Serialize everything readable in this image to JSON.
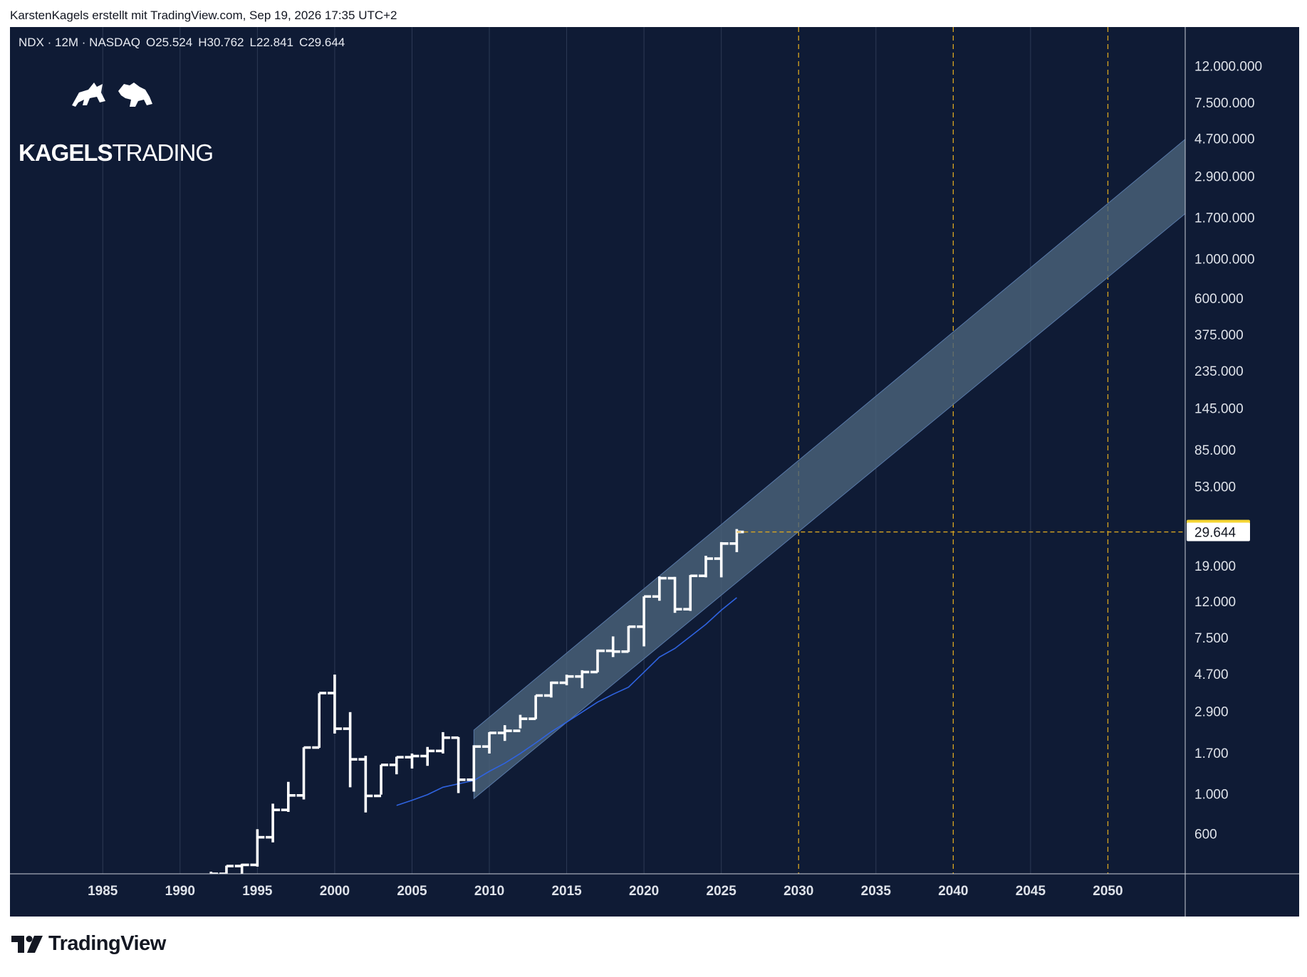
{
  "caption": "KarstenKagels erstellt mit TradingView.com, Sep 19, 2026 17:35 UTC+2",
  "legend": {
    "symbol": "NDX · 12M · NASDAQ",
    "open": "O25.524",
    "high": "H30.762",
    "low": "L22.841",
    "close": "C29.644"
  },
  "brand": {
    "bold": "KAGELS",
    "thin": "TRADING"
  },
  "footer": {
    "name": "TradingView"
  },
  "colors": {
    "background": "#0f1b35",
    "candle": "#ffffff",
    "channel_fill": "#4a637a",
    "ma_line": "#2f63e0",
    "future_gridline": "#d9a520",
    "price_tag_high": "#f5d533",
    "price_tag_close": "#ffffff"
  },
  "chart_data": {
    "type": "ohlc",
    "interval": "12M",
    "y_scale": "log",
    "x_range": [
      1979,
      2055
    ],
    "y_range": [
      360,
      20000000
    ],
    "x_ticks": [
      "1985",
      "1990",
      "1995",
      "2000",
      "2005",
      "2010",
      "2015",
      "2020",
      "2025",
      "2030",
      "2035",
      "2040",
      "2045",
      "2050"
    ],
    "y_ticks": [
      "12.000.000",
      "7.500.000",
      "4.700.000",
      "2.900.000",
      "1.700.000",
      "1.000.000",
      "600.000",
      "375.000",
      "235.000",
      "145.000",
      "85.000",
      "53.000",
      "19.000",
      "12.000",
      "7.500",
      "4.700",
      "2.900",
      "1.700",
      "1.000",
      "600"
    ],
    "y_tick_values": [
      12000000,
      7500000,
      4700000,
      2900000,
      1700000,
      1000000,
      600000,
      375000,
      235000,
      145000,
      85000,
      53000,
      19000,
      12000,
      7500,
      4700,
      2900,
      1700,
      1000,
      600
    ],
    "future_markers": [
      2030,
      2040,
      2050
    ],
    "price_labels": {
      "high": "30.762",
      "close": "29.644"
    },
    "last_close": 29644,
    "bars": [
      {
        "year": 1992,
        "open": 330,
        "high": 370,
        "low": 330,
        "close": 360
      },
      {
        "year": 1993,
        "open": 360,
        "high": 400,
        "low": 340,
        "close": 398
      },
      {
        "year": 1994,
        "open": 398,
        "high": 410,
        "low": 350,
        "close": 404
      },
      {
        "year": 1995,
        "open": 404,
        "high": 640,
        "low": 395,
        "close": 577
      },
      {
        "year": 1996,
        "open": 577,
        "high": 890,
        "low": 540,
        "close": 821
      },
      {
        "year": 1997,
        "open": 821,
        "high": 1180,
        "low": 800,
        "close": 990
      },
      {
        "year": 1998,
        "open": 990,
        "high": 1840,
        "low": 940,
        "close": 1836
      },
      {
        "year": 1999,
        "open": 1836,
        "high": 3700,
        "low": 1830,
        "close": 3708
      },
      {
        "year": 2000,
        "open": 3708,
        "high": 4704,
        "low": 2200,
        "close": 2341
      },
      {
        "year": 2001,
        "open": 2341,
        "high": 2900,
        "low": 1100,
        "close": 1577
      },
      {
        "year": 2002,
        "open": 1577,
        "high": 1650,
        "low": 795,
        "close": 984
      },
      {
        "year": 2003,
        "open": 984,
        "high": 1470,
        "low": 1000,
        "close": 1468
      },
      {
        "year": 2004,
        "open": 1468,
        "high": 1630,
        "low": 1300,
        "close": 1621
      },
      {
        "year": 2005,
        "open": 1621,
        "high": 1700,
        "low": 1400,
        "close": 1645
      },
      {
        "year": 2006,
        "open": 1645,
        "high": 1850,
        "low": 1450,
        "close": 1757
      },
      {
        "year": 2007,
        "open": 1757,
        "high": 2240,
        "low": 1700,
        "close": 2085
      },
      {
        "year": 2008,
        "open": 2085,
        "high": 2100,
        "low": 1020,
        "close": 1212
      },
      {
        "year": 2009,
        "open": 1212,
        "high": 1890,
        "low": 1040,
        "close": 1860
      },
      {
        "year": 2010,
        "open": 1860,
        "high": 2240,
        "low": 1700,
        "close": 2218
      },
      {
        "year": 2011,
        "open": 2218,
        "high": 2450,
        "low": 2000,
        "close": 2278
      },
      {
        "year": 2012,
        "open": 2278,
        "high": 2800,
        "low": 2350,
        "close": 2661
      },
      {
        "year": 2013,
        "open": 2661,
        "high": 3600,
        "low": 2650,
        "close": 3592
      },
      {
        "year": 2014,
        "open": 3592,
        "high": 4300,
        "low": 3500,
        "close": 4236
      },
      {
        "year": 2015,
        "open": 4236,
        "high": 4700,
        "low": 4100,
        "close": 4593
      },
      {
        "year": 2016,
        "open": 4593,
        "high": 4980,
        "low": 3950,
        "close": 4863
      },
      {
        "year": 2017,
        "open": 4863,
        "high": 6500,
        "low": 4850,
        "close": 6396
      },
      {
        "year": 2018,
        "open": 6396,
        "high": 7700,
        "low": 5900,
        "close": 6330
      },
      {
        "year": 2019,
        "open": 6330,
        "high": 8800,
        "low": 6300,
        "close": 8733
      },
      {
        "year": 2020,
        "open": 8733,
        "high": 12900,
        "low": 6770,
        "close": 12888
      },
      {
        "year": 2021,
        "open": 12888,
        "high": 16700,
        "low": 12200,
        "close": 16320
      },
      {
        "year": 2022,
        "open": 16320,
        "high": 16600,
        "low": 10440,
        "close": 10939
      },
      {
        "year": 2023,
        "open": 10939,
        "high": 17000,
        "low": 10700,
        "close": 16826
      },
      {
        "year": 2024,
        "open": 16826,
        "high": 21800,
        "low": 16500,
        "close": 21012
      },
      {
        "year": 2025,
        "open": 21012,
        "high": 26000,
        "low": 16500,
        "close": 25524
      },
      {
        "year": 2026,
        "open": 25524,
        "high": 30762,
        "low": 22841,
        "close": 29644
      }
    ],
    "channel": {
      "start": {
        "year": 2009,
        "upper": 2300,
        "lower": 950
      },
      "end": {
        "year": 2055,
        "upper": 4700000,
        "lower": 1800000
      }
    },
    "moving_average": [
      {
        "year": 2004,
        "value": 870
      },
      {
        "year": 2005,
        "value": 930
      },
      {
        "year": 2006,
        "value": 1000
      },
      {
        "year": 2007,
        "value": 1100
      },
      {
        "year": 2008,
        "value": 1150
      },
      {
        "year": 2009,
        "value": 1200
      },
      {
        "year": 2010,
        "value": 1350
      },
      {
        "year": 2011,
        "value": 1500
      },
      {
        "year": 2012,
        "value": 1700
      },
      {
        "year": 2013,
        "value": 1950
      },
      {
        "year": 2014,
        "value": 2250
      },
      {
        "year": 2015,
        "value": 2550
      },
      {
        "year": 2016,
        "value": 2900
      },
      {
        "year": 2017,
        "value": 3300
      },
      {
        "year": 2018,
        "value": 3650
      },
      {
        "year": 2019,
        "value": 4000
      },
      {
        "year": 2020,
        "value": 4850
      },
      {
        "year": 2021,
        "value": 5900
      },
      {
        "year": 2022,
        "value": 6600
      },
      {
        "year": 2023,
        "value": 7700
      },
      {
        "year": 2024,
        "value": 9000
      },
      {
        "year": 2025,
        "value": 10800
      },
      {
        "year": 2026,
        "value": 12700
      }
    ]
  }
}
